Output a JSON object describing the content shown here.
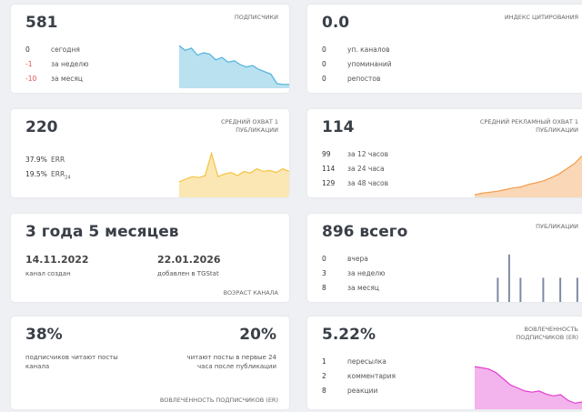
{
  "cards": [
    {
      "big": "581",
      "header": "подписчики",
      "stats": [
        [
          "0",
          "сегодня"
        ],
        [
          "-1",
          "за неделю"
        ],
        [
          "-10",
          "за месяц"
        ]
      ],
      "chart": {
        "type": "area",
        "color": "#4fb3d9",
        "ylim": [
          0,
          100
        ],
        "values": [
          90,
          80,
          85,
          70,
          75,
          72,
          60,
          65,
          55,
          58,
          50,
          45,
          48,
          40,
          35,
          30,
          10,
          8,
          8
        ]
      }
    },
    {
      "big": "0.0",
      "header": "индекс цитирования",
      "stats": [
        [
          "0",
          "уп. каналов"
        ],
        [
          "0",
          "упоминаний"
        ],
        [
          "0",
          "репостов"
        ]
      ]
    },
    {
      "big": "220",
      "header": "средний охват 1 публикации",
      "stats": [
        [
          "37.9%",
          "ERR"
        ],
        [
          "19.5%",
          "ERR",
          "24"
        ]
      ],
      "chart": {
        "type": "area",
        "color": "#f5c342",
        "ylim": [
          0,
          100
        ],
        "values": [
          30,
          35,
          40,
          38,
          42,
          85,
          40,
          45,
          48,
          42,
          50,
          47,
          55,
          50,
          52,
          48,
          55,
          50
        ]
      }
    },
    {
      "big": "114",
      "header": "средний рекламный охват 1 публикации",
      "stats": [
        [
          "99",
          "за 12 часов"
        ],
        [
          "114",
          "за 24 часа"
        ],
        [
          "129",
          "за 48 часов"
        ]
      ],
      "chart": {
        "type": "area",
        "color": "#f39c4a",
        "ylim": [
          0,
          100
        ],
        "values": [
          5,
          8,
          10,
          12,
          15,
          18,
          20,
          25,
          28,
          32,
          38,
          45,
          55,
          65,
          80
        ]
      }
    },
    {
      "big": "3 года 5 месяцев",
      "dates": [
        [
          "14.11.2022",
          "канал создан"
        ],
        [
          "22.01.2026",
          "добавлен в TGStat"
        ]
      ],
      "footer": "возраст канала"
    },
    {
      "big": "896 всего",
      "header": "публикации",
      "stats": [
        [
          "0",
          "вчера"
        ],
        [
          "3",
          "за неделю"
        ],
        [
          "8",
          "за месяц"
        ]
      ],
      "chart": {
        "type": "bar",
        "color": "#7d8ba3",
        "ylim": [
          0,
          60
        ],
        "values": [
          0,
          28,
          0,
          55,
          0,
          28,
          0,
          0,
          0,
          28,
          0,
          0,
          28,
          0,
          0,
          28
        ]
      }
    },
    {
      "big": "38%",
      "note": "подписчиков читают посты канала",
      "big2": "20%",
      "note2": "читают посты в первые 24 часа после публикации",
      "footer": "вовлеченность подписчиков (ER)"
    },
    {
      "big": "5.22%",
      "header": "вовлеченность подписчиков (ER)",
      "stats": [
        [
          "1",
          "пересылка"
        ],
        [
          "2",
          "комментария"
        ],
        [
          "8",
          "реакции"
        ]
      ],
      "chart": {
        "type": "area",
        "color": "#e040d0",
        "ylim": [
          0,
          100
        ],
        "values": [
          70,
          68,
          66,
          60,
          50,
          40,
          35,
          30,
          28,
          30,
          25,
          22,
          24,
          15,
          10,
          12
        ]
      }
    }
  ]
}
